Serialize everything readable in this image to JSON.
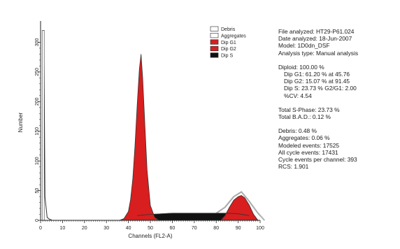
{
  "chart_data": {
    "type": "area",
    "xlabel": "Channels (FL2-A)",
    "ylabel": "Number",
    "xlim": [
      0,
      100
    ],
    "ylim": [
      0,
      330
    ],
    "xticks": [
      0,
      10,
      20,
      30,
      40,
      50,
      60,
      70,
      80,
      90,
      100
    ],
    "yticks": [
      0,
      50,
      100,
      150,
      200,
      250,
      300
    ],
    "legend": {
      "position": "top-right",
      "entries": [
        {
          "label": "Debris",
          "color": "#ffffff",
          "outline": "#444444"
        },
        {
          "label": "Aggregates",
          "color": "#ffffff",
          "outline": "#444444"
        },
        {
          "label": "Dip G1",
          "color": "#d81e1e"
        },
        {
          "label": "Dip G2",
          "color": "#d81e1e"
        },
        {
          "label": "Dip S",
          "color": "#111111"
        }
      ]
    },
    "series": [
      {
        "name": "Debris",
        "x": [
          1,
          1.5,
          2,
          3,
          4,
          5
        ],
        "values": [
          320,
          320,
          40,
          5,
          2,
          1
        ]
      },
      {
        "name": "Dip G1",
        "x": [
          36,
          38,
          40,
          41,
          42,
          43,
          44,
          45,
          45.76,
          46.5,
          47.5,
          48.5,
          50,
          52,
          54
        ],
        "values": [
          0,
          3,
          15,
          35,
          70,
          125,
          195,
          255,
          280,
          240,
          160,
          85,
          25,
          5,
          0
        ]
      },
      {
        "name": "Dip S",
        "x": [
          44,
          50,
          55,
          60,
          65,
          70,
          75,
          80,
          85,
          90,
          95
        ],
        "values": [
          8,
          10,
          11,
          12,
          12,
          12,
          12,
          12,
          12,
          11,
          8
        ]
      },
      {
        "name": "Dip G2",
        "x": [
          82,
          84,
          86,
          88,
          90,
          91.45,
          93,
          95,
          97,
          99
        ],
        "values": [
          0,
          8,
          22,
          34,
          40,
          42,
          38,
          26,
          10,
          0
        ]
      },
      {
        "name": "Aggregates",
        "x": [
          80,
          84,
          88,
          91.45,
          95,
          99,
          102
        ],
        "values": [
          12,
          22,
          40,
          48,
          32,
          12,
          0
        ]
      }
    ],
    "colors": {
      "g1": "#d81e1e",
      "g2": "#d81e1e",
      "s": "#111111",
      "outline": "#333333",
      "axis": "#222222"
    }
  },
  "stats": {
    "file_analyzed": "File analyzed: HT29-P61.024",
    "date_analyzed": "Date analyzed: 18-Jun-2007",
    "model": "Model: 1D0dn_DSF",
    "analysis_type": "Analysis type: Manual analysis",
    "diploid": "Diploid: 100.00 %",
    "dip_g1": "Dip G1: 61.20 % at 45.76",
    "dip_g2": "Dip G2: 15.07 % at 91.45",
    "dip_s": "Dip S: 23.73 %  G2/G1: 2.00",
    "cv": "%CV: 4.54",
    "total_s_phase": "Total S-Phase: 23.73 %",
    "total_bad": "Total B.A.D.: 0.12 %",
    "debris": "Debris: 0.48 %",
    "aggregates": "Aggregates: 0.06 %",
    "modeled_events": "Modeled events: 17525",
    "all_cycle_events": "All cycle events: 17431",
    "cycle_events_per_channel": "Cycle events per channel: 393",
    "rcs": "RCS: 1.901"
  }
}
